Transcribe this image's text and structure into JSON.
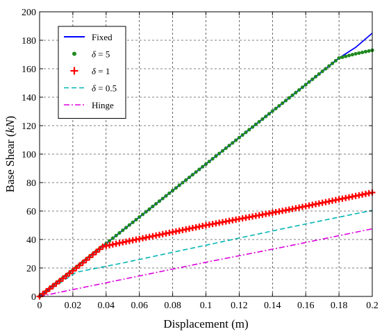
{
  "chart_data": {
    "type": "line",
    "xlabel": "Displacement (m)",
    "ylabel": "Base Shear (kN)",
    "ylabel_parts": {
      "before": "Base Shear (",
      "italic": "kN",
      "after": ")"
    },
    "xlim": [
      0,
      0.2
    ],
    "ylim": [
      0,
      200
    ],
    "x_ticks": [
      0,
      0.02,
      0.04,
      0.06,
      0.08,
      0.1,
      0.12,
      0.14,
      0.16,
      0.18,
      0.2
    ],
    "x_tick_labels": [
      "0",
      "0.02",
      "0.04",
      "0.06",
      "0.08",
      "0.1",
      "0.12",
      "0.14",
      "0.16",
      "0.18",
      "0.2"
    ],
    "y_ticks": [
      0,
      20,
      40,
      60,
      80,
      100,
      120,
      140,
      160,
      180,
      200
    ],
    "y_tick_labels": [
      "0",
      "20",
      "40",
      "60",
      "80",
      "100",
      "120",
      "140",
      "160",
      "180",
      "200"
    ],
    "grid": true,
    "legend_position": "top-left",
    "series": [
      {
        "name": "Fixed",
        "legend_label": "Fixed",
        "style": "solid",
        "color": "#0000ff",
        "points": [
          [
            0,
            0
          ],
          [
            0.05,
            46.5
          ],
          [
            0.1,
            93
          ],
          [
            0.15,
            139.5
          ],
          [
            0.18,
            167.5
          ],
          [
            0.19,
            175
          ],
          [
            0.2,
            185
          ]
        ]
      },
      {
        "name": "δ = 5",
        "legend_label": "δ = 5",
        "style": "dot",
        "color": "#1e8a1e",
        "points": [
          [
            0,
            0
          ],
          [
            0.05,
            46.5
          ],
          [
            0.1,
            93
          ],
          [
            0.15,
            139.5
          ],
          [
            0.18,
            167.5
          ],
          [
            0.19,
            170.5
          ],
          [
            0.2,
            173
          ]
        ]
      },
      {
        "name": "δ = 1",
        "legend_label": "δ = 1",
        "style": "plus",
        "color": "#ff0000",
        "points": [
          [
            0,
            0
          ],
          [
            0.02,
            18
          ],
          [
            0.038,
            35
          ],
          [
            0.05,
            38
          ],
          [
            0.1,
            50
          ],
          [
            0.15,
            61
          ],
          [
            0.2,
            73
          ]
        ]
      },
      {
        "name": "δ = 0.5",
        "legend_label": "δ = 0.5",
        "style": "dashed",
        "color": "#00b4b4",
        "points": [
          [
            0,
            0
          ],
          [
            0.022,
            17
          ],
          [
            0.05,
            23.5
          ],
          [
            0.1,
            36
          ],
          [
            0.15,
            48.5
          ],
          [
            0.2,
            60.5
          ]
        ]
      },
      {
        "name": "Hinge",
        "legend_label": "Hinge",
        "style": "dashdot",
        "color": "#dd00dd",
        "points": [
          [
            0,
            0
          ],
          [
            0.05,
            12
          ],
          [
            0.1,
            24
          ],
          [
            0.15,
            35.5
          ],
          [
            0.2,
            47.5
          ]
        ]
      }
    ]
  }
}
